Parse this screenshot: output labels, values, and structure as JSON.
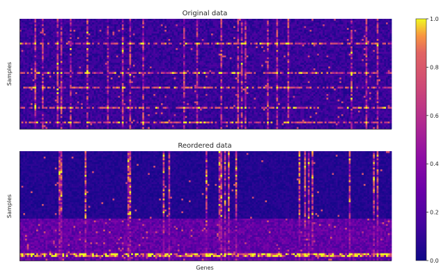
{
  "chart_data": {
    "type": "heatmap",
    "colormap": "plasma",
    "colorbar": {
      "range": [
        0,
        1
      ],
      "ticks": [
        "0.0",
        "0.2",
        "0.4",
        "0.6",
        "0.8",
        "1.0"
      ]
    },
    "panels": [
      {
        "title": "Original data",
        "ylabel": "Samples",
        "xlabel": "",
        "rows": 60,
        "cols": 200,
        "hot_columns": [
          8,
          12,
          20,
          22,
          27,
          36,
          47,
          55,
          59,
          66,
          88,
          95,
          108,
          117,
          119,
          121,
          133,
          138,
          144,
          178,
          186,
          192
        ],
        "hot_rows": [
          13,
          29,
          37,
          48,
          56
        ]
      },
      {
        "title": "Reordered data",
        "ylabel": "Samples",
        "xlabel": "Genes",
        "rows": 60,
        "cols": 200,
        "cluster_split_row": 37,
        "hot_columns": [
          21,
          22,
          35,
          58,
          59,
          77,
          80,
          100,
          107,
          108,
          110,
          112,
          116,
          150,
          153,
          155,
          157,
          177,
          190,
          192
        ],
        "hot_bottom_rows": [
          56,
          57
        ]
      }
    ]
  }
}
